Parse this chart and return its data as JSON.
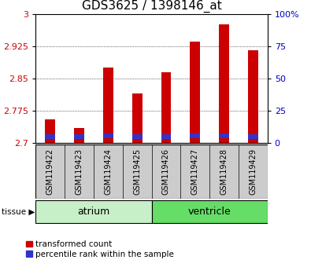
{
  "title": "GDS3625 / 1398146_at",
  "samples": [
    "GSM119422",
    "GSM119423",
    "GSM119424",
    "GSM119425",
    "GSM119426",
    "GSM119427",
    "GSM119428",
    "GSM119429"
  ],
  "transformed_count": [
    2.755,
    2.735,
    2.875,
    2.815,
    2.865,
    2.935,
    2.975,
    2.915
  ],
  "percentile_rank_bottom": [
    2.71,
    2.71,
    2.712,
    2.71,
    2.71,
    2.712,
    2.712,
    2.71
  ],
  "blue_bar_height": 0.01,
  "bar_bottom": 2.7,
  "ylim_left": [
    2.7,
    3.0
  ],
  "yticks_left": [
    2.7,
    2.775,
    2.85,
    2.925,
    3.0
  ],
  "ylim_right": [
    0,
    100
  ],
  "yticks_right": [
    0,
    25,
    50,
    75,
    100
  ],
  "tissue_groups": [
    {
      "label": "atrium",
      "indices": [
        0,
        1,
        2,
        3
      ],
      "color": "#c8f0c8"
    },
    {
      "label": "ventricle",
      "indices": [
        4,
        5,
        6,
        7
      ],
      "color": "#66dd66"
    }
  ],
  "bar_color_red": "#cc0000",
  "bar_color_blue": "#3333cc",
  "tick_label_color_left": "#cc0000",
  "tick_label_color_right": "#0000cc",
  "bar_width": 0.35,
  "sample_box_color": "#cccccc",
  "legend_items": [
    "transformed count",
    "percentile rank within the sample"
  ],
  "title_fontsize": 11,
  "axis_label_fontsize": 8,
  "sample_fontsize": 7,
  "tissue_fontsize": 9
}
